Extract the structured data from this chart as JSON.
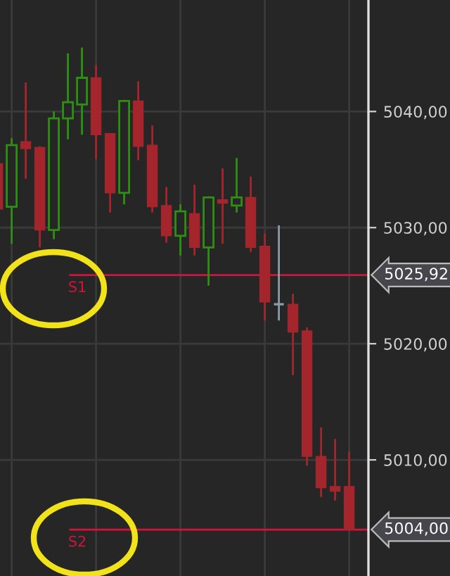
{
  "chart_data": {
    "type": "candlestick",
    "categories": [
      null,
      null,
      null,
      null,
      null,
      null,
      null,
      null,
      null,
      null,
      null,
      null,
      null,
      null,
      null,
      null,
      null,
      null,
      null,
      null,
      null,
      null,
      null,
      null,
      null,
      null
    ],
    "ohlc": [
      [
        5035.5,
        5035.5,
        5031.6,
        5031.6
      ],
      [
        5031.8,
        5037.7,
        5028.6,
        5037.1
      ],
      [
        5037.4,
        5042.5,
        5034.2,
        5036.8
      ],
      [
        5036.9,
        5037.0,
        5028.3,
        5029.8
      ],
      [
        5029.8,
        5040.0,
        5029.0,
        5039.4
      ],
      [
        5039.4,
        5045.0,
        5037.6,
        5040.8
      ],
      [
        5040.6,
        5045.5,
        5038.0,
        5042.9
      ],
      [
        5042.9,
        5044.0,
        5035.9,
        5038.0
      ],
      [
        5038.1,
        5038.1,
        5031.3,
        5033.0
      ],
      [
        5033.0,
        5041.0,
        5032.0,
        5040.9
      ],
      [
        5040.9,
        5042.6,
        5035.8,
        5037.0
      ],
      [
        5037.1,
        5038.8,
        5031.3,
        5031.8
      ],
      [
        5031.9,
        5033.5,
        5028.7,
        5029.3
      ],
      [
        5029.3,
        5032.0,
        5027.6,
        5031.4
      ],
      [
        5031.2,
        5033.7,
        5027.6,
        5028.3
      ],
      [
        5028.3,
        5032.7,
        5025.0,
        5032.6
      ],
      [
        5032.4,
        5035.1,
        5028.6,
        5032.1
      ],
      [
        5031.9,
        5036.0,
        5031.3,
        5032.6
      ],
      [
        5032.6,
        5034.4,
        5027.9,
        5028.3
      ],
      [
        5028.4,
        5029.5,
        5022.0,
        5023.6
      ],
      [
        5023.4,
        5030.2,
        5022.0,
        5023.4
      ],
      [
        5023.4,
        5024.3,
        5017.3,
        5021.0
      ],
      [
        5021.1,
        5021.4,
        5009.5,
        5010.3
      ],
      [
        5010.3,
        5012.8,
        5006.8,
        5007.6
      ],
      [
        5007.7,
        5011.8,
        5006.5,
        5007.3
      ],
      [
        5007.7,
        5010.7,
        5004.0,
        5004.0
      ]
    ],
    "colors": [
      "#a4262c",
      "#2f8f14",
      "#a4262c",
      "#a4262c",
      "#2f8f14",
      "#2f8f14",
      "#2f8f14",
      "#a4262c",
      "#a4262c",
      "#2f8f14",
      "#a4262c",
      "#a4262c",
      "#a4262c",
      "#2f8f14",
      "#a4262c",
      "#2f8f14",
      "#a4262c",
      "#2f8f14",
      "#a4262c",
      "#a4262c",
      "#8a9bab",
      "#a4262c",
      "#a4262c",
      "#a4262c",
      "#a4262c",
      "#a4262c"
    ],
    "ylim": [
      5000,
      5049.6
    ],
    "yticks": [
      {
        "value": 5010,
        "label": "5010,00"
      },
      {
        "value": 5020,
        "label": "5020,00"
      },
      {
        "value": 5030,
        "label": "5030,00"
      },
      {
        "value": 5040,
        "label": "5040,00"
      }
    ],
    "ref_lines": [
      {
        "axis": "y",
        "value": 5025.92,
        "label": "S1",
        "color": "#d0143c"
      },
      {
        "axis": "y",
        "value": 5004.0,
        "label": "S2",
        "color": "#d0143c"
      }
    ],
    "annotations": [
      "5025,92",
      "5004,00"
    ],
    "grid": true,
    "tick_labels": "y"
  }
}
